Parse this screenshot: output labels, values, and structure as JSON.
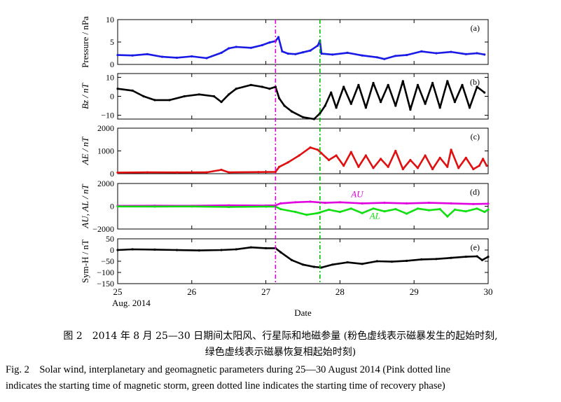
{
  "chart_data": {
    "type": "line",
    "xlabel": "Date",
    "x_ticks": [
      "25",
      "26",
      "27",
      "28",
      "29",
      "30"
    ],
    "x_start_label": "Aug. 2014",
    "xlim": [
      25,
      30
    ],
    "storm_start_day": 27.13,
    "recovery_start_day": 27.73,
    "marker_colors": {
      "storm": "#e000e0",
      "recovery": "#00c000"
    },
    "panels": [
      {
        "tag": "(a)",
        "ylabel": "Pressure / nPa",
        "ylim": [
          0,
          10
        ],
        "yticks": [
          0,
          5,
          10
        ],
        "ytick_labels": [
          "0",
          "5",
          "10"
        ],
        "series": [
          {
            "color": "#1a1ae6",
            "points": [
              [
                25.0,
                2.1
              ],
              [
                25.2,
                2.0
              ],
              [
                25.4,
                2.3
              ],
              [
                25.6,
                1.7
              ],
              [
                25.8,
                1.5
              ],
              [
                26.0,
                1.8
              ],
              [
                26.2,
                1.4
              ],
              [
                26.4,
                2.6
              ],
              [
                26.5,
                3.6
              ],
              [
                26.6,
                3.9
              ],
              [
                26.8,
                3.7
              ],
              [
                26.95,
                4.3
              ],
              [
                27.05,
                4.9
              ],
              [
                27.13,
                5.2
              ],
              [
                27.17,
                6.1
              ],
              [
                27.22,
                2.9
              ],
              [
                27.3,
                2.4
              ],
              [
                27.4,
                2.3
              ],
              [
                27.5,
                2.7
              ],
              [
                27.6,
                3.1
              ],
              [
                27.7,
                4.2
              ],
              [
                27.73,
                5.3
              ],
              [
                27.75,
                2.4
              ],
              [
                27.9,
                2.2
              ],
              [
                28.1,
                2.6
              ],
              [
                28.3,
                2.0
              ],
              [
                28.5,
                1.6
              ],
              [
                28.6,
                1.2
              ],
              [
                28.75,
                1.9
              ],
              [
                28.9,
                2.1
              ],
              [
                29.1,
                2.9
              ],
              [
                29.3,
                2.5
              ],
              [
                29.5,
                2.8
              ],
              [
                29.7,
                2.3
              ],
              [
                29.85,
                2.5
              ],
              [
                29.95,
                2.2
              ]
            ]
          }
        ]
      },
      {
        "tag": "(b)",
        "ylabel": "Bz / nT",
        "ylim": [
          -12,
          12
        ],
        "yticks": [
          -10,
          0,
          10
        ],
        "ytick_labels": [
          "−10",
          "0",
          "10"
        ],
        "series": [
          {
            "color": "#000000",
            "points": [
              [
                25.0,
                4
              ],
              [
                25.2,
                3
              ],
              [
                25.35,
                0
              ],
              [
                25.5,
                -2
              ],
              [
                25.7,
                -2
              ],
              [
                25.9,
                0
              ],
              [
                26.1,
                1
              ],
              [
                26.3,
                0
              ],
              [
                26.4,
                -3
              ],
              [
                26.5,
                1
              ],
              [
                26.6,
                4
              ],
              [
                26.8,
                6
              ],
              [
                26.95,
                5
              ],
              [
                27.05,
                4
              ],
              [
                27.13,
                5
              ],
              [
                27.18,
                -1
              ],
              [
                27.25,
                -5
              ],
              [
                27.35,
                -8
              ],
              [
                27.5,
                -11
              ],
              [
                27.65,
                -12
              ],
              [
                27.73,
                -9
              ],
              [
                27.8,
                -5
              ],
              [
                27.88,
                2
              ],
              [
                27.95,
                -6
              ],
              [
                28.05,
                5
              ],
              [
                28.15,
                -4
              ],
              [
                28.25,
                6
              ],
              [
                28.35,
                -6
              ],
              [
                28.45,
                7
              ],
              [
                28.55,
                -3
              ],
              [
                28.65,
                6
              ],
              [
                28.75,
                -5
              ],
              [
                28.85,
                8
              ],
              [
                28.95,
                -7
              ],
              [
                29.05,
                6
              ],
              [
                29.15,
                -4
              ],
              [
                29.25,
                7
              ],
              [
                29.35,
                -6
              ],
              [
                29.45,
                8
              ],
              [
                29.55,
                -3
              ],
              [
                29.65,
                6
              ],
              [
                29.75,
                -6
              ],
              [
                29.85,
                5
              ],
              [
                29.95,
                2
              ]
            ]
          }
        ]
      },
      {
        "tag": "(c)",
        "ylabel": "AE / nT",
        "ylim": [
          0,
          2000
        ],
        "yticks": [
          0,
          1000,
          2000
        ],
        "ytick_labels": [
          "0",
          "1000",
          "2000"
        ],
        "series": [
          {
            "color": "#e01010",
            "points": [
              [
                25.0,
                50
              ],
              [
                25.4,
                60
              ],
              [
                25.8,
                55
              ],
              [
                26.2,
                60
              ],
              [
                26.4,
                170
              ],
              [
                26.5,
                60
              ],
              [
                26.9,
                70
              ],
              [
                27.13,
                80
              ],
              [
                27.18,
                300
              ],
              [
                27.3,
                500
              ],
              [
                27.45,
                800
              ],
              [
                27.6,
                1150
              ],
              [
                27.7,
                1050
              ],
              [
                27.75,
                900
              ],
              [
                27.85,
                600
              ],
              [
                27.95,
                800
              ],
              [
                28.05,
                350
              ],
              [
                28.15,
                950
              ],
              [
                28.25,
                300
              ],
              [
                28.35,
                800
              ],
              [
                28.45,
                250
              ],
              [
                28.55,
                650
              ],
              [
                28.65,
                300
              ],
              [
                28.75,
                1000
              ],
              [
                28.85,
                200
              ],
              [
                28.95,
                600
              ],
              [
                29.05,
                250
              ],
              [
                29.15,
                800
              ],
              [
                29.25,
                200
              ],
              [
                29.35,
                700
              ],
              [
                29.45,
                300
              ],
              [
                29.5,
                1050
              ],
              [
                29.6,
                250
              ],
              [
                29.7,
                700
              ],
              [
                29.8,
                200
              ],
              [
                29.88,
                350
              ],
              [
                29.93,
                650
              ],
              [
                29.98,
                350
              ]
            ]
          }
        ]
      },
      {
        "tag": "(d)",
        "ylabel": "AU, AL / nT",
        "ylim": [
          -2000,
          2000
        ],
        "yticks": [
          -2000,
          0,
          2000
        ],
        "ytick_labels": [
          "−2000",
          "0",
          "2000"
        ],
        "series": [
          {
            "name": "AU",
            "color": "#e000e0",
            "points": [
              [
                25.0,
                40
              ],
              [
                25.5,
                50
              ],
              [
                26.0,
                45
              ],
              [
                26.5,
                80
              ],
              [
                27.0,
                60
              ],
              [
                27.13,
                80
              ],
              [
                27.2,
                250
              ],
              [
                27.4,
                350
              ],
              [
                27.6,
                400
              ],
              [
                27.8,
                300
              ],
              [
                28.0,
                350
              ],
              [
                28.3,
                250
              ],
              [
                28.6,
                300
              ],
              [
                28.9,
                250
              ],
              [
                29.2,
                300
              ],
              [
                29.5,
                250
              ],
              [
                29.8,
                200
              ],
              [
                30.0,
                220
              ]
            ]
          },
          {
            "name": "AL",
            "color": "#10e010",
            "points": [
              [
                25.0,
                -20
              ],
              [
                25.5,
                -25
              ],
              [
                26.0,
                -20
              ],
              [
                26.5,
                -60
              ],
              [
                27.0,
                -30
              ],
              [
                27.13,
                -40
              ],
              [
                27.2,
                -250
              ],
              [
                27.4,
                -500
              ],
              [
                27.55,
                -750
              ],
              [
                27.7,
                -600
              ],
              [
                27.85,
                -300
              ],
              [
                28.0,
                -500
              ],
              [
                28.15,
                -200
              ],
              [
                28.3,
                -600
              ],
              [
                28.45,
                -200
              ],
              [
                28.6,
                -450
              ],
              [
                28.75,
                -250
              ],
              [
                28.9,
                -650
              ],
              [
                29.05,
                -200
              ],
              [
                29.2,
                -350
              ],
              [
                29.35,
                -250
              ],
              [
                29.45,
                -900
              ],
              [
                29.55,
                -300
              ],
              [
                29.7,
                -450
              ],
              [
                29.85,
                -200
              ],
              [
                29.95,
                -500
              ],
              [
                30.0,
                -300
              ]
            ]
          }
        ]
      },
      {
        "tag": "(e)",
        "ylabel": "Sym-H / nT",
        "ylim": [
          -150,
          50
        ],
        "yticks": [
          -150,
          -100,
          -50,
          0,
          50
        ],
        "ytick_labels": [
          "−150",
          "−100",
          "−50",
          "0",
          "50"
        ],
        "series": [
          {
            "color": "#000000",
            "points": [
              [
                25.0,
                0
              ],
              [
                25.2,
                3
              ],
              [
                25.5,
                2
              ],
              [
                25.8,
                0
              ],
              [
                26.1,
                -2
              ],
              [
                26.4,
                0
              ],
              [
                26.6,
                3
              ],
              [
                26.8,
                12
              ],
              [
                27.0,
                8
              ],
              [
                27.13,
                8
              ],
              [
                27.2,
                -10
              ],
              [
                27.35,
                -45
              ],
              [
                27.5,
                -65
              ],
              [
                27.65,
                -75
              ],
              [
                27.75,
                -78
              ],
              [
                27.9,
                -65
              ],
              [
                28.1,
                -55
              ],
              [
                28.3,
                -62
              ],
              [
                28.5,
                -50
              ],
              [
                28.7,
                -52
              ],
              [
                28.9,
                -48
              ],
              [
                29.1,
                -42
              ],
              [
                29.3,
                -40
              ],
              [
                29.5,
                -35
              ],
              [
                29.7,
                -30
              ],
              [
                29.85,
                -28
              ],
              [
                29.92,
                -45
              ],
              [
                30.0,
                -30
              ]
            ]
          }
        ]
      }
    ]
  },
  "captions": {
    "cn_line1": "图 2　2014 年 8 月 25—30 日期间太阳风、行星际和地磁参量 (粉色虚线表示磁暴发生的起始时刻,",
    "cn_line2": "绿色虚线表示磁暴恢复相起始时刻)",
    "en_line1": "Fig. 2　Solar wind, interplanetary and geomagnetic parameters during 25—30 August 2014 (Pink dotted line",
    "en_line2": "indicates the starting time of magnetic storm, green dotted line indicates the starting time of recovery phase)"
  }
}
